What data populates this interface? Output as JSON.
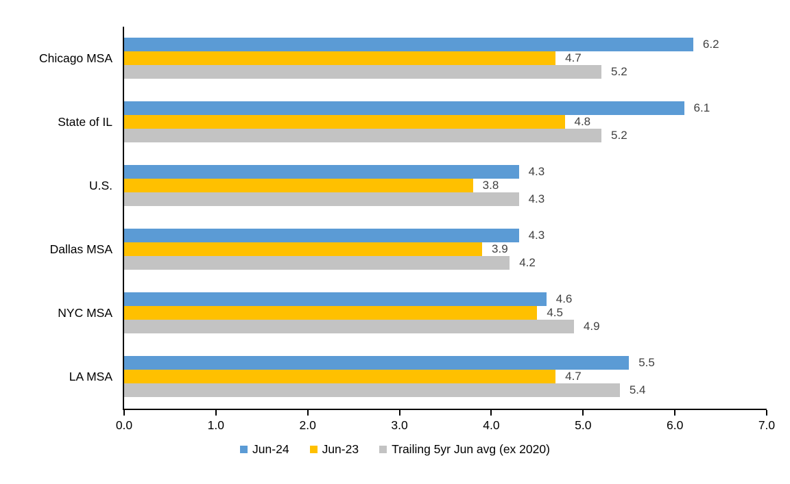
{
  "chart_data": {
    "type": "bar",
    "orientation": "horizontal",
    "title": "",
    "categories": [
      "Chicago MSA",
      "State of IL",
      "U.S.",
      "Dallas MSA",
      "NYC MSA",
      "LA MSA"
    ],
    "series": [
      {
        "name": "Jun-24",
        "color": "#5B9BD5",
        "values": [
          6.2,
          6.1,
          4.3,
          4.3,
          4.6,
          5.5
        ]
      },
      {
        "name": "Jun-23",
        "color": "#FFC000",
        "values": [
          4.7,
          4.8,
          3.8,
          3.9,
          4.5,
          4.7
        ]
      },
      {
        "name": "Trailing 5yr Jun avg (ex 2020)",
        "color": "#C3C3C3",
        "values": [
          5.2,
          5.2,
          4.3,
          4.2,
          4.9,
          5.4
        ]
      }
    ],
    "xlim": [
      0,
      7
    ],
    "x_tick_labels": [
      "0.0",
      "1.0",
      "2.0",
      "3.0",
      "4.0",
      "5.0",
      "6.0",
      "7.0"
    ],
    "value_labels_shown": true,
    "value_label_decimals": 1,
    "value_label_color": "#404040",
    "axis_color": "#000000",
    "grid": false,
    "legend_position": "bottom"
  }
}
